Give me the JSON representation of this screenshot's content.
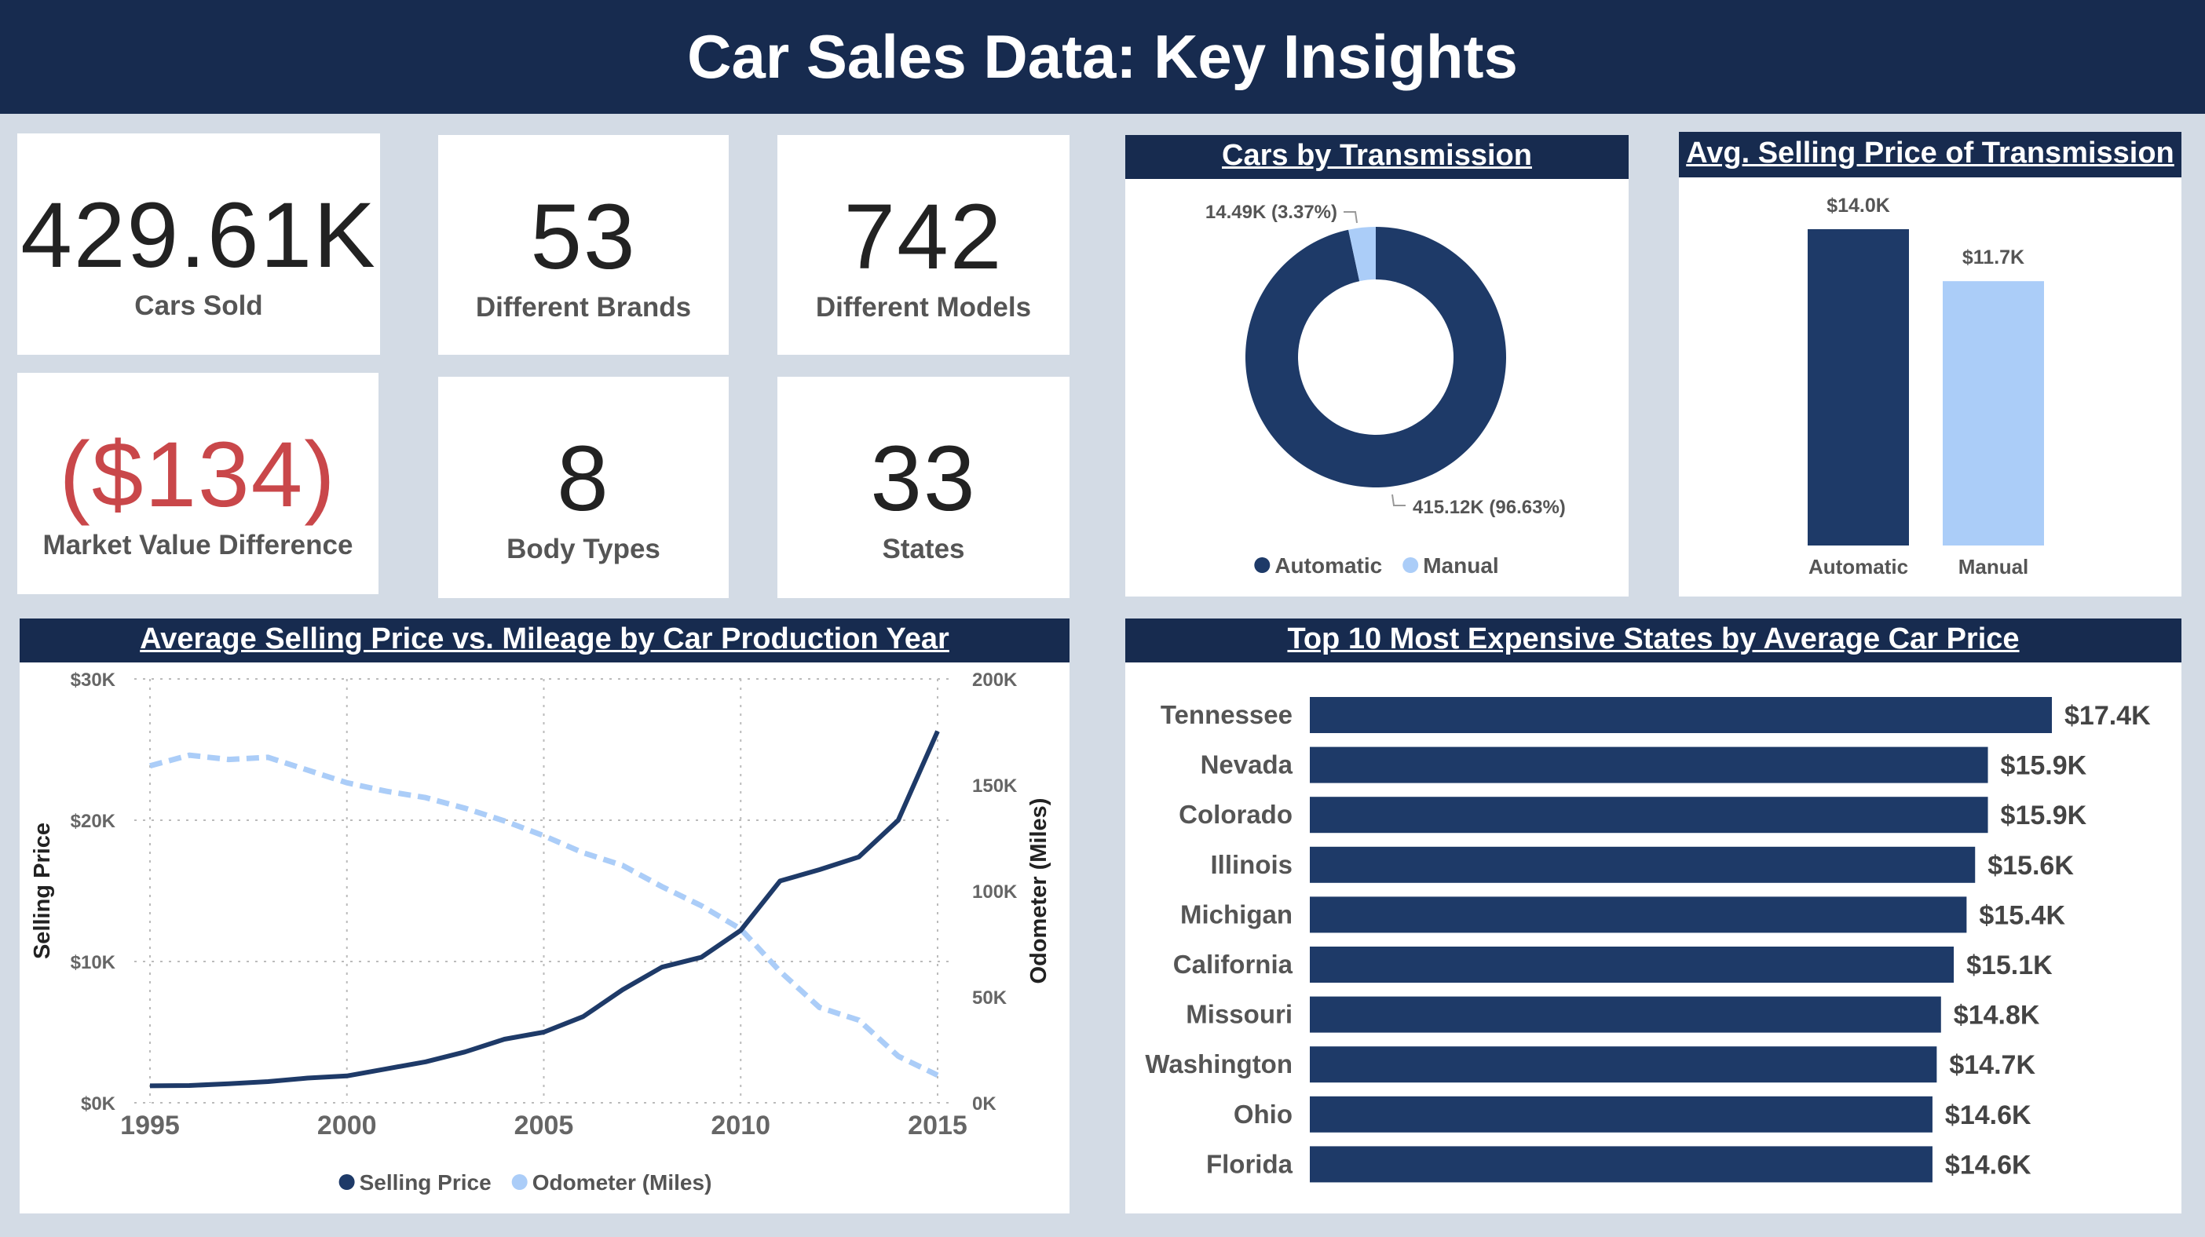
{
  "title": "Car Sales Data: Key Insights",
  "kpis": [
    {
      "value": "429.61K",
      "label": "Cars Sold"
    },
    {
      "value": "53",
      "label": "Different Brands"
    },
    {
      "value": "742",
      "label": "Different Models"
    },
    {
      "value": "($134)",
      "label": "Market Value Difference",
      "color": "#c9474a"
    },
    {
      "value": "8",
      "label": "Body Types"
    },
    {
      "value": "33",
      "label": "States"
    }
  ],
  "colors": {
    "primary": "#1e3a68",
    "secondary": "#abcdf8",
    "header": "#172b4f",
    "negative": "#c9474a"
  },
  "chart_data": [
    {
      "type": "pie",
      "title": "Cars by Transmission",
      "donut": true,
      "slices": [
        {
          "name": "Automatic",
          "value": 415120,
          "label": "415.12K (96.63%)"
        },
        {
          "name": "Manual",
          "value": 14490,
          "label": "14.49K (3.37%)"
        }
      ],
      "legend": "bottom"
    },
    {
      "type": "bar",
      "title": "Avg. Selling Price of Transmission",
      "categories": [
        "Automatic",
        "Manual"
      ],
      "values": [
        14.0,
        11.7
      ],
      "data_labels": [
        "$14.0K",
        "$11.7K"
      ]
    },
    {
      "type": "line",
      "title": "Average Selling Price vs. Mileage by Car Production Year",
      "x": [
        1995,
        1996,
        1997,
        1998,
        1999,
        2000,
        2001,
        2002,
        2003,
        2004,
        2005,
        2006,
        2007,
        2008,
        2009,
        2010,
        2011,
        2012,
        2013,
        2014,
        2015
      ],
      "xticks": [
        "1995",
        "2000",
        "2005",
        "2010",
        "2015"
      ],
      "series": [
        {
          "name": "Selling Price",
          "axis": "left",
          "style": "solid",
          "values": [
            1200,
            1220,
            1350,
            1500,
            1750,
            1900,
            2400,
            2900,
            3600,
            4500,
            5000,
            6100,
            8000,
            9600,
            10300,
            12200,
            15700,
            16500,
            17400,
            20000,
            26300
          ]
        },
        {
          "name": "Odometer (Miles)",
          "axis": "right",
          "style": "dashed",
          "values": [
            159000,
            164000,
            162000,
            163000,
            157000,
            151000,
            147000,
            144000,
            139000,
            133000,
            126000,
            118000,
            112000,
            102000,
            93000,
            82000,
            62000,
            45000,
            39000,
            22000,
            13000
          ]
        }
      ],
      "ylabel": "Selling Price",
      "ylabel_right": "Odometer (Miles)",
      "ylim": [
        0,
        30000
      ],
      "ylim_right": [
        0,
        200000
      ],
      "yticks": [
        "$0K",
        "$10K",
        "$20K",
        "$30K"
      ],
      "yticks_right": [
        "0K",
        "50K",
        "100K",
        "150K",
        "200K"
      ],
      "grid": true,
      "legend": "bottom"
    },
    {
      "type": "bar",
      "orientation": "horizontal",
      "title": "Top 10 Most Expensive States by Average Car Price",
      "categories": [
        "Tennessee",
        "Nevada",
        "Colorado",
        "Illinois",
        "Michigan",
        "California",
        "Missouri",
        "Washington",
        "Ohio",
        "Florida"
      ],
      "values": [
        17.4,
        15.9,
        15.9,
        15.6,
        15.4,
        15.1,
        14.8,
        14.7,
        14.6,
        14.6
      ],
      "data_labels": [
        "$17.4K",
        "$15.9K",
        "$15.9K",
        "$15.6K",
        "$15.4K",
        "$15.1K",
        "$14.8K",
        "$14.7K",
        "$14.6K",
        "$14.6K"
      ]
    }
  ]
}
